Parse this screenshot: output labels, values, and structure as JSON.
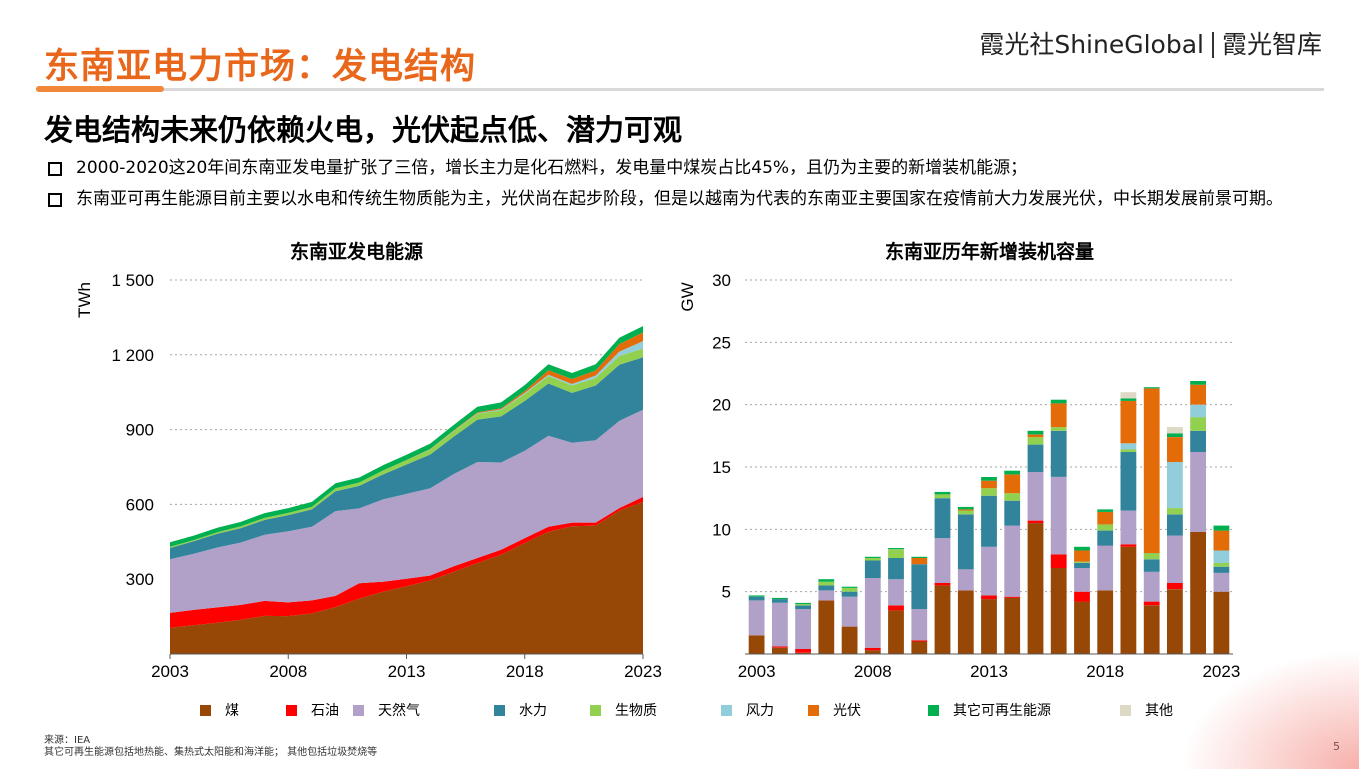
{
  "page": {
    "title": "东南亚电力市场：发电结构",
    "brand_left": "霞光社",
    "brand_mid": "ShineGlobal",
    "brand_right": "霞光智库",
    "headline": "发电结构未来仍依赖火电，光伏起点低、潜力可观",
    "bullets": [
      "2000-2020这20年间东南亚发电量扩张了三倍，增长主力是化石燃料，发电量中煤炭占比45%，且仍为主要的新增装机能源；",
      "东南亚可再生能源目前主要以水电和传统生物质能为主，光伏尚在起步阶段，但是以越南为代表的东南亚主要国家在疫情前大力发展光伏，中长期发展前景可期。"
    ],
    "source": "来源：IEA",
    "footnote": "其它可再生能源包括地热能、集热式太阳能和海洋能；  其他包括垃圾焚烧等",
    "page_number": "5",
    "colors": {
      "title": "#e8671b"
    }
  },
  "chart_data": [
    {
      "type": "area",
      "title": "东南亚发电能源",
      "ylabel": "TWh",
      "xlabel": "",
      "ylim": [
        0,
        1500
      ],
      "yticks": [
        300,
        600,
        900,
        1200,
        1500
      ],
      "ytick_labels": [
        "300",
        "600",
        "900",
        "1 200",
        "1 500"
      ],
      "xtick_labels": [
        "2003",
        "2008",
        "2013",
        "2018",
        "2023"
      ],
      "x": [
        2003,
        2004,
        2005,
        2006,
        2007,
        2008,
        2009,
        2010,
        2011,
        2012,
        2013,
        2014,
        2015,
        2016,
        2017,
        2018,
        2019,
        2020,
        2021,
        2022,
        2023
      ],
      "grid": "horizontal-dotted",
      "series": [
        {
          "name": "煤",
          "color": "#974806",
          "values": [
            105,
            115,
            125,
            137,
            153,
            152,
            163,
            188,
            222,
            250,
            272,
            295,
            330,
            365,
            398,
            445,
            490,
            512,
            515,
            575,
            610
          ]
        },
        {
          "name": "石油",
          "color": "#ff0000",
          "values": [
            60,
            62,
            62,
            60,
            60,
            55,
            52,
            45,
            62,
            40,
            30,
            20,
            22,
            20,
            20,
            20,
            20,
            15,
            12,
            10,
            20
          ]
        },
        {
          "name": "天然气",
          "color": "#b1a0c7",
          "values": [
            215,
            225,
            240,
            250,
            265,
            285,
            295,
            340,
            300,
            330,
            340,
            350,
            370,
            385,
            350,
            350,
            365,
            320,
            330,
            350,
            350
          ]
        },
        {
          "name": "水力",
          "color": "#31849b",
          "values": [
            45,
            50,
            55,
            58,
            60,
            65,
            70,
            80,
            90,
            100,
            118,
            135,
            150,
            170,
            185,
            200,
            210,
            200,
            220,
            225,
            210
          ]
        },
        {
          "name": "生物质",
          "color": "#92d050",
          "values": [
            5,
            5,
            6,
            7,
            8,
            9,
            10,
            12,
            14,
            16,
            18,
            20,
            22,
            24,
            25,
            28,
            30,
            30,
            30,
            35,
            35
          ]
        },
        {
          "name": "风力",
          "color": "#92cddc",
          "values": [
            0,
            0,
            0,
            0,
            0,
            0,
            0,
            0,
            0,
            0,
            0,
            1,
            1,
            2,
            3,
            4,
            5,
            6,
            10,
            18,
            30
          ]
        },
        {
          "name": "光伏",
          "color": "#e36c09",
          "values": [
            0,
            0,
            0,
            0,
            0,
            0,
            0,
            0,
            0,
            0,
            0,
            1,
            2,
            3,
            5,
            8,
            18,
            20,
            20,
            30,
            35
          ]
        },
        {
          "name": "其它可再生能源",
          "color": "#00b050",
          "values": [
            18,
            18,
            18,
            18,
            19,
            19,
            20,
            20,
            20,
            21,
            21,
            22,
            22,
            23,
            23,
            24,
            24,
            24,
            25,
            25,
            25
          ]
        },
        {
          "name": "其他",
          "color": "#ddd9c4",
          "values": [
            0,
            0,
            0,
            0,
            0,
            0,
            0,
            0,
            0,
            0,
            0,
            0,
            0,
            0,
            0,
            0,
            0,
            0,
            0,
            0,
            0
          ]
        }
      ]
    },
    {
      "type": "bar",
      "stacked": true,
      "title": "东南亚历年新增装机容量",
      "ylabel": "GW",
      "xlabel": "",
      "ylim": [
        0,
        30
      ],
      "yticks": [
        5,
        10,
        15,
        20,
        25,
        30
      ],
      "ytick_labels": [
        "5",
        "10",
        "15",
        "20",
        "25",
        "30"
      ],
      "xtick_labels": [
        "2003",
        "2008",
        "2013",
        "2018",
        "2023"
      ],
      "categories": [
        2003,
        2004,
        2005,
        2006,
        2007,
        2008,
        2009,
        2010,
        2011,
        2012,
        2013,
        2014,
        2015,
        2016,
        2017,
        2018,
        2019,
        2020,
        2021,
        2022,
        2023
      ],
      "grid": "horizontal-dotted",
      "series": [
        {
          "name": "煤",
          "color": "#974806",
          "values": [
            1.5,
            0.5,
            0.1,
            4.3,
            2.2,
            0.3,
            3.5,
            1.0,
            5.5,
            5.1,
            4.4,
            4.5,
            10.5,
            6.9,
            4.2,
            5.1,
            8.6,
            3.9,
            5.2,
            9.8,
            5.0
          ]
        },
        {
          "name": "石油",
          "color": "#ff0000",
          "values": [
            0,
            0.1,
            0.3,
            0,
            0,
            0.2,
            0.4,
            0.1,
            0.2,
            0,
            0.3,
            0.1,
            0.2,
            1.1,
            0.8,
            0,
            0.2,
            0.3,
            0.5,
            0,
            0
          ]
        },
        {
          "name": "天然气",
          "color": "#b1a0c7",
          "values": [
            2.8,
            3.5,
            3.2,
            0.8,
            2.4,
            5.6,
            2.1,
            2.5,
            3.6,
            1.7,
            3.9,
            5.7,
            3.9,
            6.2,
            1.9,
            3.6,
            2.7,
            2.4,
            3.8,
            6.4,
            1.5
          ]
        },
        {
          "name": "水力",
          "color": "#31849b",
          "values": [
            0.3,
            0.3,
            0.3,
            0.4,
            0.4,
            1.4,
            1.7,
            3.6,
            3.2,
            4.4,
            4.1,
            2.0,
            2.2,
            3.7,
            0.4,
            1.2,
            4.7,
            1.0,
            1.7,
            1.7,
            0.5
          ]
        },
        {
          "name": "生物质",
          "color": "#92d050",
          "values": [
            0,
            0,
            0.1,
            0.3,
            0.3,
            0.2,
            0.7,
            0,
            0.3,
            0.3,
            0.6,
            0.6,
            0.6,
            0.3,
            0.1,
            0.5,
            0.2,
            0.5,
            0.5,
            1.1,
            0.3
          ]
        },
        {
          "name": "风力",
          "color": "#92cddc",
          "values": [
            0,
            0,
            0,
            0,
            0,
            0,
            0,
            0,
            0,
            0,
            0,
            0,
            0,
            0,
            0,
            0,
            0.5,
            0,
            3.7,
            1.0,
            1.0
          ]
        },
        {
          "name": "光伏",
          "color": "#e36c09",
          "values": [
            0,
            0,
            0,
            0,
            0,
            0,
            0,
            0.5,
            0,
            0.1,
            0.6,
            1.5,
            0.2,
            1.9,
            0.9,
            1.0,
            3.4,
            13.2,
            2.0,
            1.6,
            1.6
          ]
        },
        {
          "name": "其它可再生能源",
          "color": "#00b050",
          "values": [
            0.1,
            0.1,
            0.1,
            0.2,
            0.1,
            0.1,
            0.1,
            0.1,
            0.2,
            0.2,
            0.3,
            0.3,
            0.3,
            0.3,
            0.3,
            0.2,
            0.2,
            0.1,
            0.3,
            0.3,
            0.4
          ]
        },
        {
          "name": "其他",
          "color": "#ddd9c4",
          "values": [
            0,
            0,
            0,
            0,
            0,
            0,
            0,
            0,
            0,
            0,
            0,
            0,
            0,
            0,
            0,
            0,
            0.5,
            0,
            0.5,
            0,
            0
          ]
        }
      ]
    }
  ]
}
